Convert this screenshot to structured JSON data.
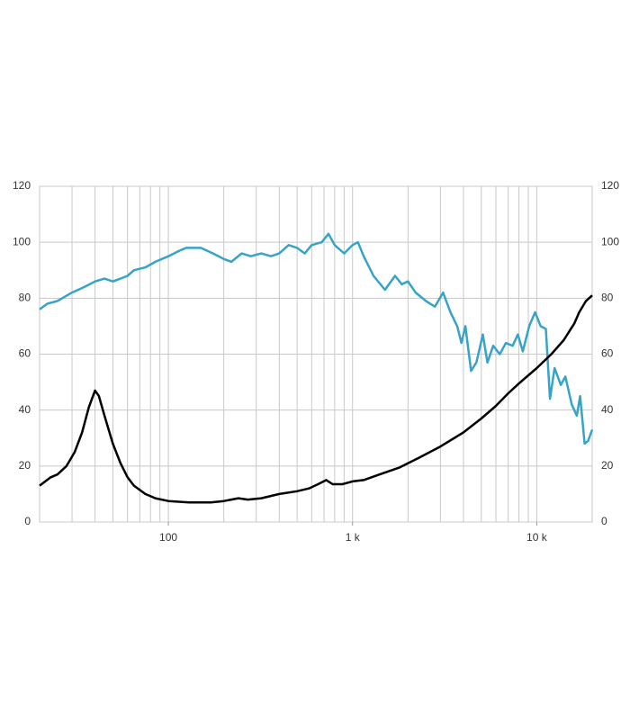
{
  "chart_data": {
    "type": "line",
    "log_x": true,
    "grid": true,
    "right_axis_labels": true,
    "xlim": [
      20,
      20000
    ],
    "ylim": [
      0,
      120
    ],
    "xticks": [
      {
        "value": 100,
        "label": "100"
      },
      {
        "value": 1000,
        "label": "1 k"
      },
      {
        "value": 10000,
        "label": "10 k"
      }
    ],
    "xgrid": [
      20,
      30,
      40,
      50,
      60,
      70,
      80,
      90,
      100,
      200,
      300,
      400,
      500,
      600,
      700,
      800,
      900,
      1000,
      2000,
      3000,
      4000,
      5000,
      6000,
      7000,
      8000,
      9000,
      10000,
      20000
    ],
    "yticks": [
      0,
      20,
      40,
      60,
      80,
      100,
      120
    ],
    "series": [
      {
        "color": "#36a4c8",
        "x": [
          20,
          22,
          25,
          30,
          35,
          40,
          45,
          50,
          55,
          60,
          65,
          75,
          85,
          100,
          115,
          125,
          150,
          175,
          200,
          220,
          250,
          280,
          320,
          360,
          400,
          450,
          500,
          550,
          600,
          680,
          740,
          800,
          900,
          1000,
          1070,
          1150,
          1300,
          1500,
          1700,
          1850,
          2000,
          2200,
          2500,
          2800,
          3100,
          3400,
          3700,
          3900,
          4100,
          4400,
          4700,
          5100,
          5400,
          5800,
          6300,
          6800,
          7400,
          7900,
          8400,
          9100,
          9800,
          10500,
          11200,
          11800,
          12500,
          13500,
          14300,
          15500,
          16500,
          17200,
          18200,
          19000,
          20000
        ],
        "values": [
          76,
          78,
          79,
          82,
          84,
          86,
          87,
          86,
          87,
          88,
          90,
          91,
          93,
          95,
          97,
          98,
          98,
          96,
          94,
          93,
          96,
          95,
          96,
          95,
          96,
          99,
          98,
          96,
          99,
          100,
          103,
          99,
          96,
          99,
          100,
          95,
          88,
          83,
          88,
          85,
          86,
          82,
          79,
          77,
          82,
          75,
          70,
          64,
          70,
          54,
          57,
          67,
          57,
          63,
          60,
          64,
          63,
          67,
          61,
          70,
          75,
          70,
          69,
          44,
          55,
          49,
          52,
          42,
          38,
          45,
          28,
          29,
          33
        ]
      },
      {
        "color": "#000000",
        "x": [
          20,
          23,
          25,
          28,
          31,
          34,
          37,
          40,
          42,
          45,
          50,
          55,
          60,
          65,
          75,
          85,
          100,
          130,
          170,
          200,
          240,
          270,
          320,
          400,
          500,
          580,
          650,
          720,
          780,
          880,
          1000,
          1150,
          1400,
          1800,
          2300,
          3000,
          4000,
          5000,
          6000,
          7000,
          8000,
          10000,
          12000,
          14000,
          16000,
          17000,
          18500,
          20000
        ],
        "values": [
          13,
          16,
          17,
          20,
          25,
          32,
          41,
          47,
          45,
          38,
          28,
          21,
          16,
          13,
          10,
          8.5,
          7.5,
          7,
          7,
          7.5,
          8.5,
          8,
          8.5,
          10,
          11,
          12,
          13.5,
          15,
          13.5,
          13.5,
          14.5,
          15,
          17,
          19.5,
          23,
          27,
          32,
          37,
          41.5,
          46,
          49.5,
          55,
          60,
          65,
          71,
          75,
          79,
          81
        ]
      }
    ]
  }
}
